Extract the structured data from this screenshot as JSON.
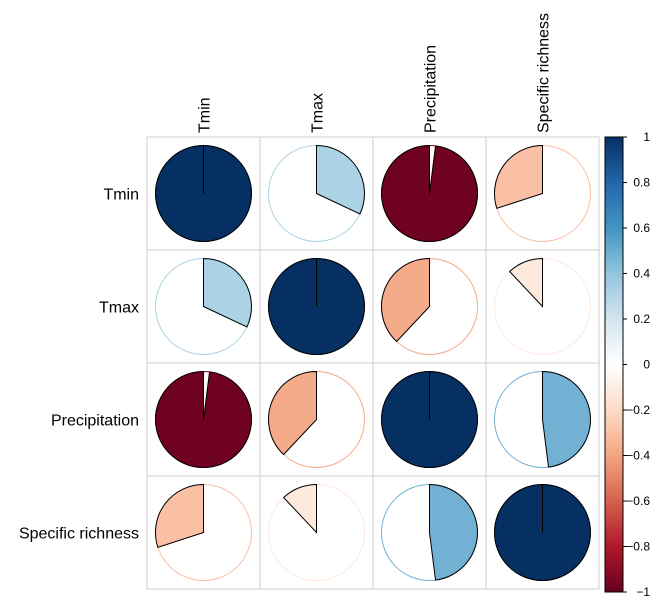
{
  "chart_data": {
    "type": "correlation-pie",
    "variables": [
      "Tmin",
      "Tmax",
      "Precipitation",
      "Specific richness"
    ],
    "matrix": [
      [
        1.0,
        0.32,
        -0.98,
        -0.3
      ],
      [
        0.32,
        1.0,
        -0.38,
        -0.12
      ],
      [
        -0.98,
        -0.38,
        1.0,
        0.48
      ],
      [
        -0.3,
        -0.12,
        0.48,
        1.0
      ]
    ],
    "colorbar": {
      "range": [
        -1,
        1
      ],
      "ticks": [
        "1",
        "0.8",
        "0.6",
        "0.4",
        "0.2",
        "0",
        "−0.2",
        "−0.4",
        "−0.6",
        "−0.8",
        "−1"
      ],
      "tick_values": [
        1,
        0.8,
        0.6,
        0.4,
        0.2,
        0,
        -0.2,
        -0.4,
        -0.6,
        -0.8,
        -1
      ],
      "legend_position": "right"
    },
    "palette": [
      "#67001F",
      "#B2182B",
      "#D6604D",
      "#F4A582",
      "#FDDBC7",
      "#FFFFFF",
      "#D1E5F0",
      "#92C5DE",
      "#4393C3",
      "#2166AC",
      "#053061"
    ]
  }
}
